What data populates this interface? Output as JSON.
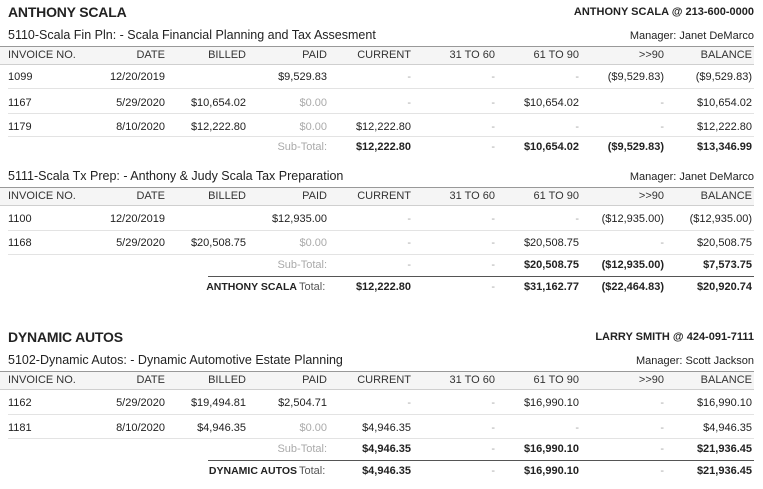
{
  "columns": [
    "INVOICE NO.",
    "DATE",
    "BILLED",
    "PAID",
    "CURRENT",
    "31 TO 60",
    "61 TO 90",
    ">>90",
    "BALANCE"
  ],
  "clients": [
    {
      "name": "ANTHONY SCALA",
      "contact": "ANTHONY SCALA @  213-600-0000",
      "matters": [
        {
          "title": "5110-Scala Fin Pln: - Scala Financial Planning and Tax Assesment",
          "manager": "Manager: Janet DeMarco",
          "rows": [
            [
              "1099",
              "12/20/2019",
              "",
              "$9,529.83",
              "-",
              "-",
              "-",
              "($9,529.83)",
              "($9,529.83)"
            ],
            [
              "1167",
              "5/29/2020",
              "$10,654.02",
              "$0.00",
              "-",
              "-",
              "$10,654.02",
              "-",
              "$10,654.02"
            ],
            [
              "1179",
              "8/10/2020",
              "$12,222.80",
              "$0.00",
              "$12,222.80",
              "-",
              "-",
              "-",
              "$12,222.80"
            ]
          ],
          "subtotal_label": "Sub-Total:",
          "subtotal": [
            "$12,222.80",
            "-",
            "$10,654.02",
            "($9,529.83)",
            "$13,346.99"
          ]
        },
        {
          "title": "5111-Scala Tx Prep: - Anthony & Judy Scala Tax Preparation",
          "manager": "Manager: Janet DeMarco",
          "rows": [
            [
              "1100",
              "12/20/2019",
              "",
              "$12,935.00",
              "-",
              "-",
              "-",
              "($12,935.00)",
              "($12,935.00)"
            ],
            [
              "1168",
              "5/29/2020",
              "$20,508.75",
              "$0.00",
              "-",
              "-",
              "$20,508.75",
              "-",
              "$20,508.75"
            ]
          ],
          "subtotal_label": "Sub-Total:",
          "subtotal": [
            "-",
            "-",
            "$20,508.75",
            "($12,935.00)",
            "$7,573.75"
          ]
        }
      ],
      "total_name": "ANTHONY SCALA",
      "total_label": "Total:",
      "total": [
        "$12,222.80",
        "-",
        "$31,162.77",
        "($22,464.83)",
        "$20,920.74"
      ]
    },
    {
      "name": "DYNAMIC AUTOS",
      "contact": "LARRY SMITH @  424-091-7111",
      "matters": [
        {
          "title": "5102-Dynamic Autos: - Dynamic Automotive Estate Planning",
          "manager": "Manager: Scott Jackson",
          "rows": [
            [
              "1162",
              "5/29/2020",
              "$19,494.81",
              "$2,504.71",
              "-",
              "-",
              "$16,990.10",
              "-",
              "$16,990.10"
            ],
            [
              "1181",
              "8/10/2020",
              "$4,946.35",
              "$0.00",
              "$4,946.35",
              "-",
              "-",
              "-",
              "$4,946.35"
            ]
          ],
          "subtotal_label": "Sub-Total:",
          "subtotal": [
            "$4,946.35",
            "-",
            "$16,990.10",
            "-",
            "$21,936.45"
          ]
        }
      ],
      "total_name": "DYNAMIC AUTOS",
      "total_label": "Total:",
      "total": [
        "$4,946.35",
        "-",
        "$16,990.10",
        "-",
        "$21,936.45"
      ]
    }
  ]
}
